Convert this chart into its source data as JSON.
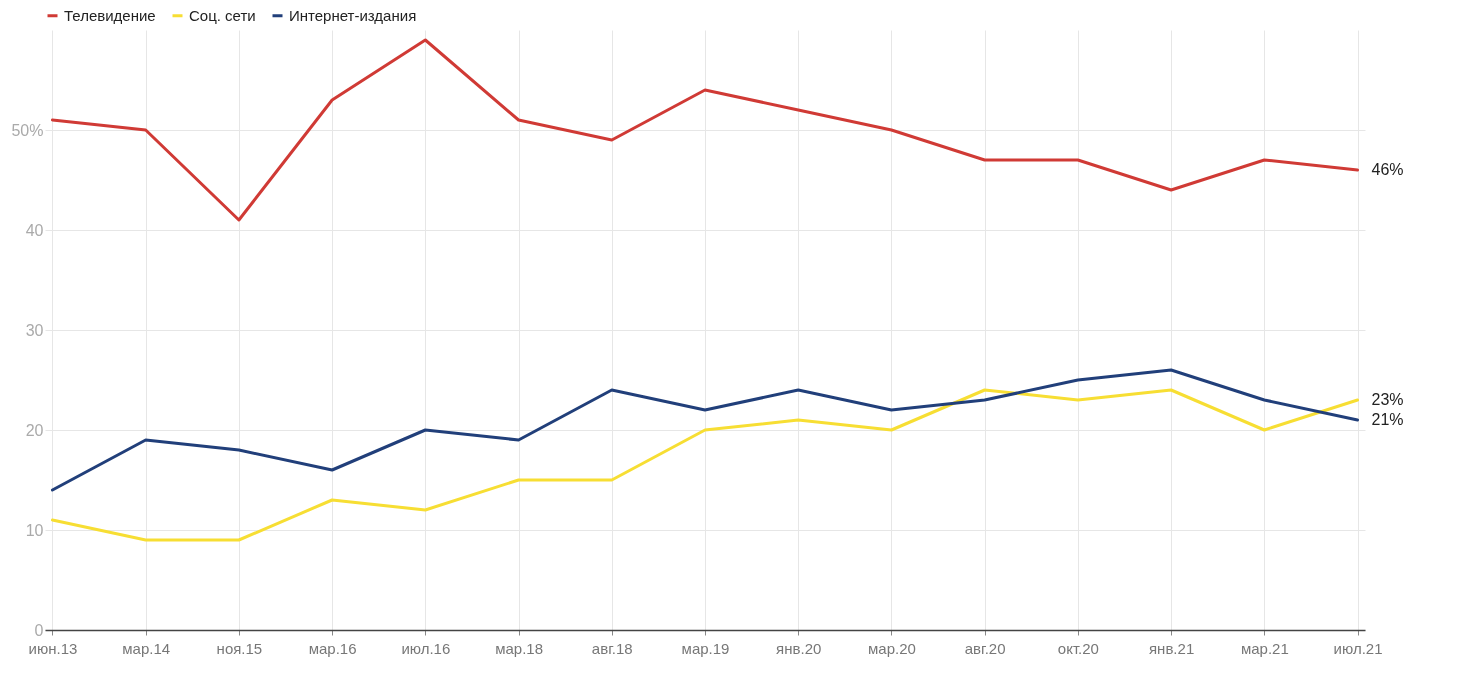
{
  "chart_data": {
    "type": "line",
    "categories": [
      "июн.13",
      "мар.14",
      "ноя.15",
      "мар.16",
      "июл.16",
      "мар.18",
      "авг.18",
      "мар.19",
      "янв.20",
      "мар.20",
      "авг.20",
      "окт.20",
      "янв.21",
      "мар.21",
      "июл.21"
    ],
    "series": [
      {
        "name": "Телевидение",
        "color": "#d03a35",
        "values": [
          51,
          50,
          41,
          53,
          59,
          51,
          49,
          54,
          52,
          50,
          47,
          47,
          44,
          47,
          46
        ],
        "value_labels": [
          null,
          null,
          null,
          null,
          null,
          null,
          null,
          null,
          null,
          null,
          null,
          null,
          null,
          null,
          "46%"
        ]
      },
      {
        "name": "Соц. сети",
        "color": "#f7de33",
        "values": [
          11,
          9,
          9,
          13,
          12,
          15,
          15,
          20,
          21,
          20,
          24,
          23,
          24,
          20,
          23
        ],
        "value_labels": [
          null,
          null,
          null,
          null,
          null,
          null,
          null,
          null,
          null,
          null,
          null,
          null,
          null,
          null,
          "23%"
        ]
      },
      {
        "name": "Интернет-издания",
        "color": "#213f7a",
        "values": [
          14,
          19,
          18,
          16,
          20,
          19,
          24,
          22,
          24,
          22,
          23,
          25,
          26,
          23,
          21
        ],
        "value_labels": [
          null,
          null,
          null,
          null,
          null,
          null,
          null,
          null,
          null,
          null,
          null,
          null,
          null,
          null,
          "21%"
        ]
      }
    ],
    "ylim": [
      0,
      60
    ],
    "yticks": [
      0,
      10,
      20,
      30,
      40,
      {
        "value": 50,
        "label": "50%"
      }
    ],
    "grid": true,
    "legend": "top left",
    "marker": "none",
    "line_style": "solid"
  }
}
